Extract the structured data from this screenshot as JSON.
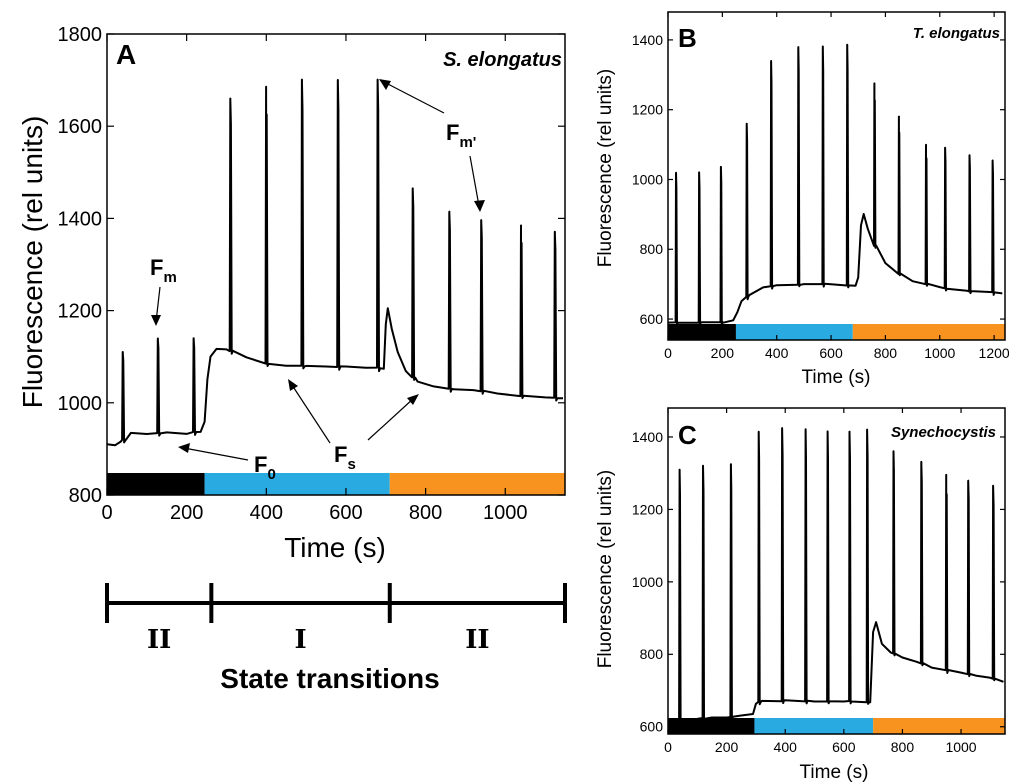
{
  "colors": {
    "dark": "#000000",
    "blue": "#29abe2",
    "orange": "#f7931e"
  },
  "chart_data": [
    {
      "panel": "A",
      "type": "line",
      "title": "S. elongatus",
      "xlabel": "Time (s)",
      "ylabel": "Fluorescence (rel units)",
      "xlim": [
        0,
        1150
      ],
      "ylim": [
        800,
        1800
      ],
      "xticks": [
        0,
        200,
        400,
        600,
        800,
        1000
      ],
      "yticks": [
        800,
        1000,
        1200,
        1400,
        1600,
        1800
      ],
      "baseline": [
        [
          0,
          910
        ],
        [
          20,
          908
        ],
        [
          35,
          915
        ],
        [
          60,
          935
        ],
        [
          100,
          932
        ],
        [
          150,
          935
        ],
        [
          200,
          933
        ],
        [
          235,
          938
        ],
        [
          245,
          960
        ],
        [
          252,
          1050
        ],
        [
          260,
          1100
        ],
        [
          275,
          1118
        ],
        [
          300,
          1115
        ],
        [
          350,
          1100
        ],
        [
          400,
          1085
        ],
        [
          450,
          1080
        ],
        [
          500,
          1080
        ],
        [
          550,
          1078
        ],
        [
          600,
          1078
        ],
        [
          650,
          1076
        ],
        [
          695,
          1075
        ],
        [
          700,
          1170
        ],
        [
          705,
          1205
        ],
        [
          715,
          1160
        ],
        [
          730,
          1110
        ],
        [
          750,
          1070
        ],
        [
          780,
          1045
        ],
        [
          820,
          1035
        ],
        [
          870,
          1030
        ],
        [
          920,
          1028
        ],
        [
          980,
          1020
        ],
        [
          1040,
          1015
        ],
        [
          1100,
          1012
        ],
        [
          1145,
          1010
        ]
      ],
      "spikes": [
        [
          40,
          1110
        ],
        [
          128,
          1140
        ],
        [
          218,
          1140
        ],
        [
          310,
          1660
        ],
        [
          400,
          1685
        ],
        [
          490,
          1700
        ],
        [
          580,
          1700
        ],
        [
          680,
          1700
        ],
        [
          768,
          1465
        ],
        [
          860,
          1415
        ],
        [
          940,
          1395
        ],
        [
          1040,
          1385
        ],
        [
          1125,
          1370
        ]
      ],
      "light_bar": [
        {
          "start": 0,
          "end": 245,
          "color": "#000000"
        },
        {
          "start": 245,
          "end": 710,
          "color": "#29abe2"
        },
        {
          "start": 710,
          "end": 1150,
          "color": "#f7931e"
        }
      ],
      "annotations": {
        "fm": "F",
        "fm_sub": "m",
        "fmp": "F",
        "fmp_sub": "m'",
        "fs": "F",
        "fs_sub": "s",
        "f0": "F",
        "f0_sub": "0"
      },
      "state_transitions": {
        "label": "State transitions",
        "states": [
          "II",
          "I",
          "II"
        ],
        "boundaries": [
          0,
          262,
          710,
          1150
        ]
      }
    },
    {
      "panel": "B",
      "type": "line",
      "title": "T. elongatus",
      "xlabel": "Time (s)",
      "ylabel": "Fluorescence (rel units)",
      "xlim": [
        0,
        1240
      ],
      "ylim": [
        540,
        1480
      ],
      "xticks": [
        0,
        200,
        400,
        600,
        800,
        1000,
        1200
      ],
      "yticks": [
        600,
        800,
        1000,
        1200,
        1400
      ],
      "baseline": [
        [
          0,
          590
        ],
        [
          60,
          590
        ],
        [
          120,
          590
        ],
        [
          200,
          590
        ],
        [
          240,
          595
        ],
        [
          255,
          620
        ],
        [
          270,
          650
        ],
        [
          300,
          670
        ],
        [
          350,
          690
        ],
        [
          400,
          698
        ],
        [
          500,
          700
        ],
        [
          600,
          700
        ],
        [
          690,
          695
        ],
        [
          700,
          720
        ],
        [
          710,
          870
        ],
        [
          720,
          900
        ],
        [
          735,
          860
        ],
        [
          760,
          810
        ],
        [
          800,
          760
        ],
        [
          850,
          730
        ],
        [
          900,
          710
        ],
        [
          950,
          700
        ],
        [
          1000,
          690
        ],
        [
          1100,
          680
        ],
        [
          1230,
          675
        ]
      ],
      "spikes": [
        [
          30,
          1020
        ],
        [
          115,
          1020
        ],
        [
          195,
          1035
        ],
        [
          290,
          1160
        ],
        [
          380,
          1340
        ],
        [
          480,
          1380
        ],
        [
          570,
          1380
        ],
        [
          660,
          1385
        ],
        [
          760,
          1275
        ],
        [
          850,
          1180
        ],
        [
          950,
          1100
        ],
        [
          1020,
          1090
        ],
        [
          1110,
          1070
        ],
        [
          1195,
          1055
        ]
      ],
      "light_bar": [
        {
          "start": 0,
          "end": 250,
          "color": "#000000"
        },
        {
          "start": 250,
          "end": 680,
          "color": "#29abe2"
        },
        {
          "start": 680,
          "end": 1240,
          "color": "#f7931e"
        }
      ]
    },
    {
      "panel": "C",
      "type": "line",
      "title": "Synechocystis",
      "xlabel": "Time (s)",
      "ylabel": "Fluorescence (rel units)",
      "xlim": [
        0,
        1150
      ],
      "ylim": [
        580,
        1480
      ],
      "xticks": [
        0,
        200,
        400,
        600,
        800,
        1000
      ],
      "yticks": [
        600,
        800,
        1000,
        1200,
        1400
      ],
      "baseline": [
        [
          0,
          615
        ],
        [
          50,
          620
        ],
        [
          100,
          622
        ],
        [
          150,
          625
        ],
        [
          200,
          627
        ],
        [
          250,
          630
        ],
        [
          290,
          635
        ],
        [
          300,
          665
        ],
        [
          320,
          670
        ],
        [
          400,
          672
        ],
        [
          500,
          670
        ],
        [
          600,
          670
        ],
        [
          690,
          668
        ],
        [
          700,
          860
        ],
        [
          710,
          890
        ],
        [
          730,
          830
        ],
        [
          760,
          805
        ],
        [
          800,
          790
        ],
        [
          850,
          780
        ],
        [
          900,
          765
        ],
        [
          950,
          755
        ],
        [
          1000,
          748
        ],
        [
          1050,
          742
        ],
        [
          1100,
          735
        ],
        [
          1145,
          725
        ]
      ],
      "spikes": [
        [
          40,
          1310
        ],
        [
          120,
          1320
        ],
        [
          215,
          1325
        ],
        [
          310,
          1415
        ],
        [
          390,
          1425
        ],
        [
          470,
          1420
        ],
        [
          545,
          1415
        ],
        [
          620,
          1415
        ],
        [
          680,
          1420
        ],
        [
          770,
          1360
        ],
        [
          865,
          1330
        ],
        [
          950,
          1295
        ],
        [
          1025,
          1280
        ],
        [
          1110,
          1265
        ]
      ],
      "light_bar": [
        {
          "start": 0,
          "end": 295,
          "color": "#000000"
        },
        {
          "start": 295,
          "end": 700,
          "color": "#29abe2"
        },
        {
          "start": 700,
          "end": 1150,
          "color": "#f7931e"
        }
      ]
    }
  ]
}
